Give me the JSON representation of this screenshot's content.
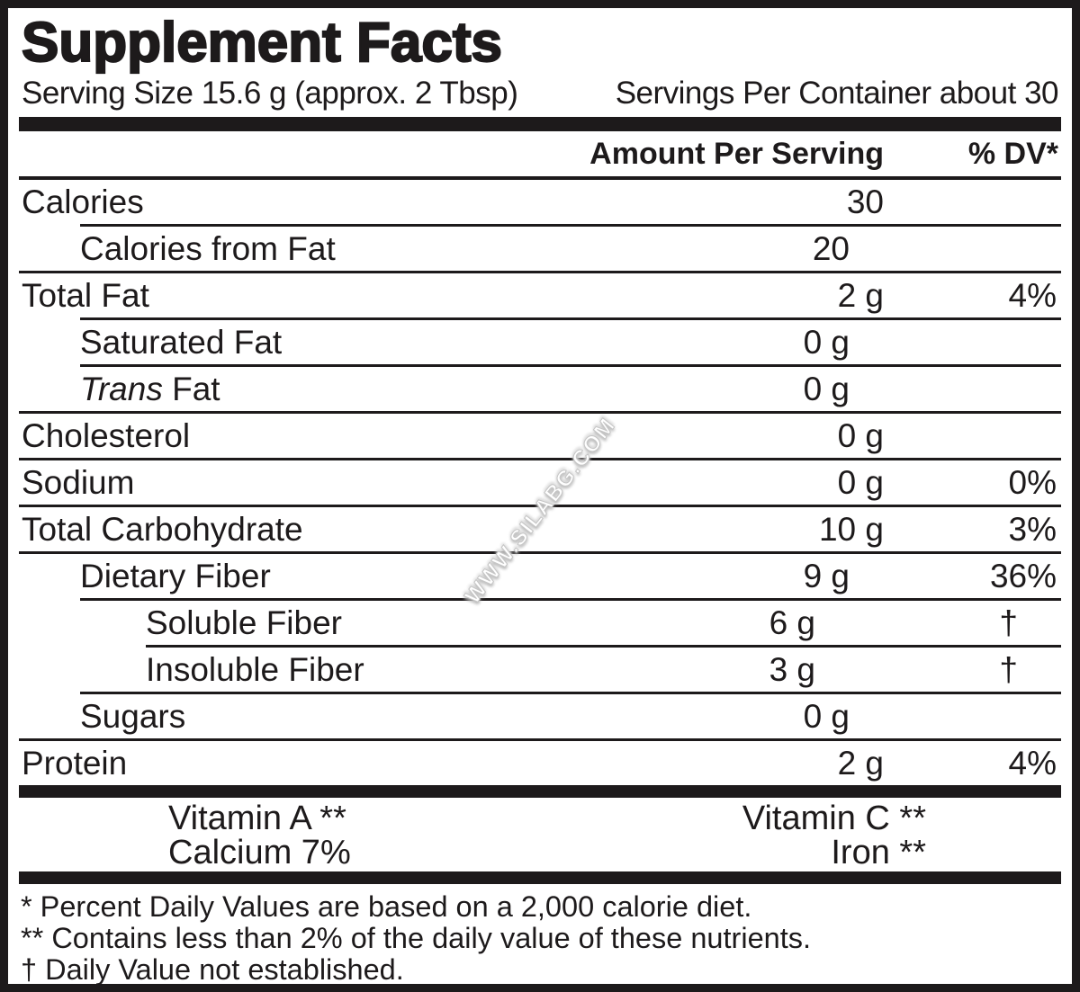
{
  "title": "Supplement Facts",
  "serving": {
    "size": "Serving Size 15.6 g (approx. 2 Tbsp)",
    "per_container": "Servings Per Container about 30"
  },
  "header": {
    "amount_label": "Amount Per Serving",
    "dv_label": "% DV*"
  },
  "rows": [
    {
      "label": "Calories",
      "amount": "30",
      "dv": "",
      "indent": 0
    },
    {
      "label": "Calories from Fat",
      "amount": "20",
      "dv": "",
      "indent": 1
    },
    {
      "label": "Total Fat",
      "amount": "2 g",
      "dv": "4%",
      "indent": 0
    },
    {
      "label": "Saturated Fat",
      "amount": "0 g",
      "dv": "",
      "indent": 1
    },
    {
      "label_italic": "Trans",
      "label": " Fat",
      "amount": "0 g",
      "dv": "",
      "indent": 1
    },
    {
      "label": "Cholesterol",
      "amount": "0 g",
      "dv": "",
      "indent": 0
    },
    {
      "label": "Sodium",
      "amount": "0 g",
      "dv": "0%",
      "indent": 0
    },
    {
      "label": "Total Carbohydrate",
      "amount": "10 g",
      "dv": "3%",
      "indent": 0
    },
    {
      "label": "Dietary Fiber",
      "amount": "9 g",
      "dv": "36%",
      "indent": 1
    },
    {
      "label": "Soluble Fiber",
      "amount": "6 g",
      "dv": "†",
      "indent": 2
    },
    {
      "label": "Insoluble Fiber",
      "amount": "3 g",
      "dv": "†",
      "indent": 2
    },
    {
      "label": "Sugars",
      "amount": "0 g",
      "dv": "",
      "indent": 1
    },
    {
      "label": "Protein",
      "amount": "2 g",
      "dv": "4%",
      "indent": 0
    }
  ],
  "vitamins": [
    {
      "left": "Vitamin A **",
      "right": "Vitamin C **"
    },
    {
      "left": "Calcium 7%",
      "right": "Iron **"
    }
  ],
  "footnotes": [
    "* Percent Daily Values are based on a 2,000 calorie diet.",
    "** Contains less than 2% of the daily value of these nutrients.",
    "† Daily Value not established."
  ],
  "watermark": "WWW.SILABG.COM",
  "colors": {
    "ink": "#1d1a1b",
    "background": "#ffffff",
    "watermark_fill": "#ffffff",
    "watermark_halo": "#c6c6c6"
  }
}
